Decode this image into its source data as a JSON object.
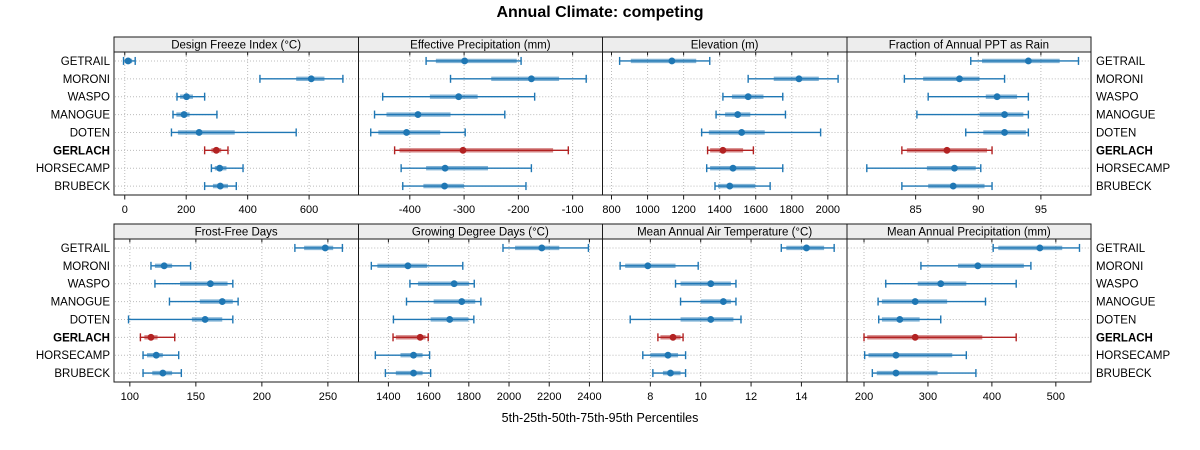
{
  "title": "Annual Climate: competing",
  "caption": "5th-25th-50th-75th-95th Percentiles",
  "colors": {
    "series": "#1f77b4",
    "series_band": "rgba(31,119,180,0.55)",
    "highlight": "#b22222",
    "highlight_band": "rgba(178,34,34,0.55)",
    "grid": "#bcbcbc",
    "header_bg": "#ededed",
    "border": "#1a1a1a",
    "text": "#000000"
  },
  "sites": [
    {
      "name": "GETRAIL",
      "highlight": false
    },
    {
      "name": "MORONI",
      "highlight": false
    },
    {
      "name": "WASPO",
      "highlight": false
    },
    {
      "name": "MANOGUE",
      "highlight": false
    },
    {
      "name": "DOTEN",
      "highlight": false
    },
    {
      "name": "GERLACH",
      "highlight": true
    },
    {
      "name": "HORSECAMP",
      "highlight": false
    },
    {
      "name": "BRUBECK",
      "highlight": false
    }
  ],
  "chart_data": {
    "type": "trellis-percentile-segments",
    "percentiles": [
      5,
      25,
      50,
      75,
      95
    ],
    "note": "values per site: [p5, p25, p50, p75, p95] in site order GETRAIL..BRUBECK",
    "panels": [
      {
        "title": "Design Freeze Index (°C)",
        "row": 0,
        "col": 0,
        "xlim": [
          -35,
          760
        ],
        "ticks": [
          0,
          200,
          400,
          600
        ],
        "values": [
          [
            -4,
            1,
            11,
            24,
            34
          ],
          [
            440,
            558,
            607,
            650,
            710
          ],
          [
            170,
            180,
            201,
            222,
            260
          ],
          [
            157,
            168,
            193,
            211,
            300
          ],
          [
            152,
            173,
            242,
            358,
            558
          ],
          [
            260,
            282,
            298,
            314,
            336
          ],
          [
            282,
            293,
            309,
            331,
            385
          ],
          [
            260,
            287,
            311,
            336,
            363
          ]
        ]
      },
      {
        "title": "Effective Precipitation (mm)",
        "row": 0,
        "col": 1,
        "xlim": [
          -495,
          -45
        ],
        "ticks": [
          -400,
          -300,
          -200,
          -100
        ],
        "values": [
          [
            -370,
            -352,
            -299,
            -203,
            -195
          ],
          [
            -325,
            -250,
            -176,
            -125,
            -75
          ],
          [
            -450,
            -363,
            -310,
            -275,
            -170
          ],
          [
            -465,
            -443,
            -385,
            -325,
            -225
          ],
          [
            -472,
            -458,
            -406,
            -344,
            -298
          ],
          [
            -428,
            -419,
            -302,
            -136,
            -108
          ],
          [
            -416,
            -370,
            -335,
            -256,
            -176
          ],
          [
            -413,
            -375,
            -336,
            -300,
            -186
          ]
        ]
      },
      {
        "title": "Elevation (m)",
        "row": 0,
        "col": 2,
        "xlim": [
          750,
          2105
        ],
        "ticks": [
          800,
          1000,
          1200,
          1400,
          1600,
          1800,
          2000
        ],
        "values": [
          [
            845,
            907,
            1135,
            1270,
            1345
          ],
          [
            1558,
            1700,
            1840,
            1950,
            2057
          ],
          [
            1418,
            1468,
            1558,
            1643,
            1750
          ],
          [
            1380,
            1430,
            1500,
            1570,
            1765
          ],
          [
            1300,
            1340,
            1522,
            1650,
            1960
          ],
          [
            1333,
            1347,
            1418,
            1530,
            1587
          ],
          [
            1328,
            1347,
            1474,
            1598,
            1750
          ],
          [
            1374,
            1391,
            1456,
            1598,
            1680
          ]
        ]
      },
      {
        "title": "Fraction of Annual PPT as Rain",
        "row": 0,
        "col": 3,
        "xlim": [
          79.5,
          99
        ],
        "ticks": [
          85,
          90,
          95
        ],
        "values": [
          [
            89.4,
            90.3,
            94.0,
            96.5,
            98.0
          ],
          [
            84.1,
            85.6,
            88.5,
            90.1,
            92.1
          ],
          [
            86.0,
            90.6,
            91.5,
            93.1,
            94.0
          ],
          [
            85.1,
            90.1,
            92.1,
            93.6,
            94.0
          ],
          [
            89.0,
            90.4,
            92.1,
            93.8,
            94.0
          ],
          [
            83.9,
            84.3,
            87.5,
            90.7,
            91.1
          ],
          [
            81.1,
            85.9,
            88.1,
            89.8,
            90.2
          ],
          [
            83.9,
            86.0,
            88.0,
            90.5,
            91.1
          ]
        ]
      },
      {
        "title": "Frost-Free Days",
        "row": 1,
        "col": 0,
        "xlim": [
          88,
          273
        ],
        "ticks": [
          100,
          150,
          200,
          250
        ],
        "values": [
          [
            225,
            232,
            248,
            254,
            261
          ],
          [
            116,
            119,
            126,
            132,
            146
          ],
          [
            119,
            138,
            161,
            174,
            178
          ],
          [
            130,
            153,
            170,
            178,
            182
          ],
          [
            99,
            147,
            157,
            170,
            178
          ],
          [
            108,
            111,
            116,
            121,
            134
          ],
          [
            110,
            113,
            120,
            125,
            137
          ],
          [
            110,
            117,
            125,
            132,
            139
          ]
        ]
      },
      {
        "title": "Growing Degree Days (°C)",
        "row": 1,
        "col": 1,
        "xlim": [
          1250,
          2465
        ],
        "ticks": [
          1400,
          1600,
          1800,
          2000,
          2200,
          2400
        ],
        "values": [
          [
            1970,
            2030,
            2163,
            2250,
            2395
          ],
          [
            1315,
            1345,
            1497,
            1593,
            1770
          ],
          [
            1507,
            1547,
            1727,
            1800,
            1827
          ],
          [
            1490,
            1625,
            1765,
            1832,
            1860
          ],
          [
            1425,
            1610,
            1705,
            1798,
            1825
          ],
          [
            1423,
            1437,
            1558,
            1585,
            1598
          ],
          [
            1335,
            1460,
            1525,
            1570,
            1605
          ],
          [
            1385,
            1437,
            1525,
            1570,
            1610
          ]
        ]
      },
      {
        "title": "Mean Annual Air Temperature (°C)",
        "row": 1,
        "col": 2,
        "xlim": [
          6.1,
          15.8
        ],
        "ticks": [
          8,
          10,
          12,
          14
        ],
        "values": [
          [
            13.2,
            13.4,
            14.2,
            14.9,
            15.3
          ],
          [
            6.8,
            7.0,
            7.9,
            9.0,
            9.9
          ],
          [
            9.0,
            9.2,
            10.4,
            11.2,
            11.4
          ],
          [
            9.2,
            10.0,
            10.9,
            11.2,
            11.4
          ],
          [
            7.2,
            9.2,
            10.4,
            11.3,
            11.6
          ],
          [
            8.3,
            8.4,
            8.9,
            9.2,
            9.3
          ],
          [
            7.7,
            8.0,
            8.7,
            9.1,
            9.4
          ],
          [
            8.1,
            8.5,
            8.8,
            9.2,
            9.4
          ]
        ]
      },
      {
        "title": "Mean Annual Precipitation (mm)",
        "row": 1,
        "col": 3,
        "xlim": [
          173,
          555
        ],
        "ticks": [
          200,
          300,
          400,
          500
        ],
        "values": [
          [
            402,
            410,
            475,
            510,
            537
          ],
          [
            289,
            347,
            378,
            450,
            461
          ],
          [
            234,
            284,
            320,
            360,
            438
          ],
          [
            222,
            228,
            280,
            330,
            390
          ],
          [
            223,
            228,
            256,
            287,
            320
          ],
          [
            200,
            205,
            280,
            385,
            438
          ],
          [
            201,
            207,
            250,
            338,
            360
          ],
          [
            213,
            220,
            250,
            315,
            375
          ]
        ]
      }
    ]
  }
}
